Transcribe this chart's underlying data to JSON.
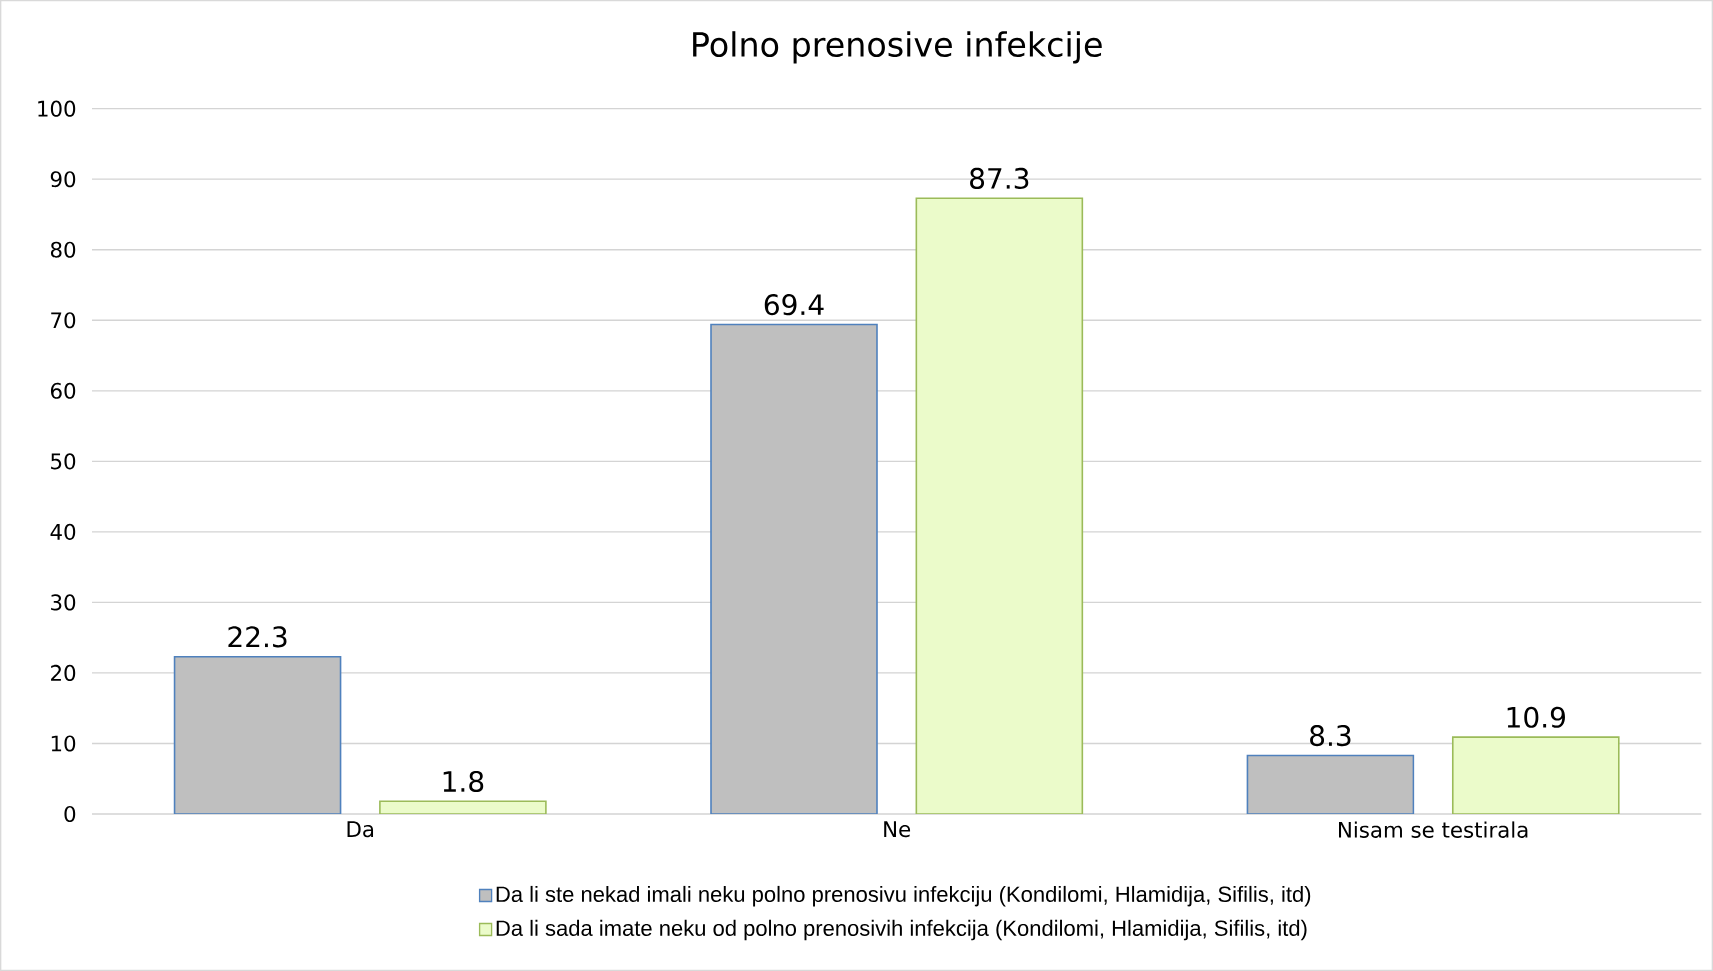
{
  "chart_data": {
    "type": "bar",
    "title": "Polno prenosive infekcije",
    "categories": [
      "Da",
      "Ne",
      "Nisam se testirala"
    ],
    "series": [
      {
        "name": "Da li ste nekad imali neku polno prenosivu infekciju (Kondilomi, Hlamidija, Sifilis, itd)",
        "color": "#bfbfbf",
        "values": [
          22.3,
          69.4,
          8.3
        ]
      },
      {
        "name": "Da li sada imate neku od polno prenosivih infekcija (Kondilomi, Hlamidija, Sifilis, itd)",
        "color": "#ebfbca",
        "values": [
          1.8,
          87.3,
          10.9
        ]
      }
    ],
    "ylim": [
      0,
      100
    ],
    "yticks": [
      0,
      10,
      20,
      30,
      40,
      50,
      60,
      70,
      80,
      90,
      100
    ],
    "grid": "y",
    "legend": "bottom",
    "data_labels": true
  }
}
